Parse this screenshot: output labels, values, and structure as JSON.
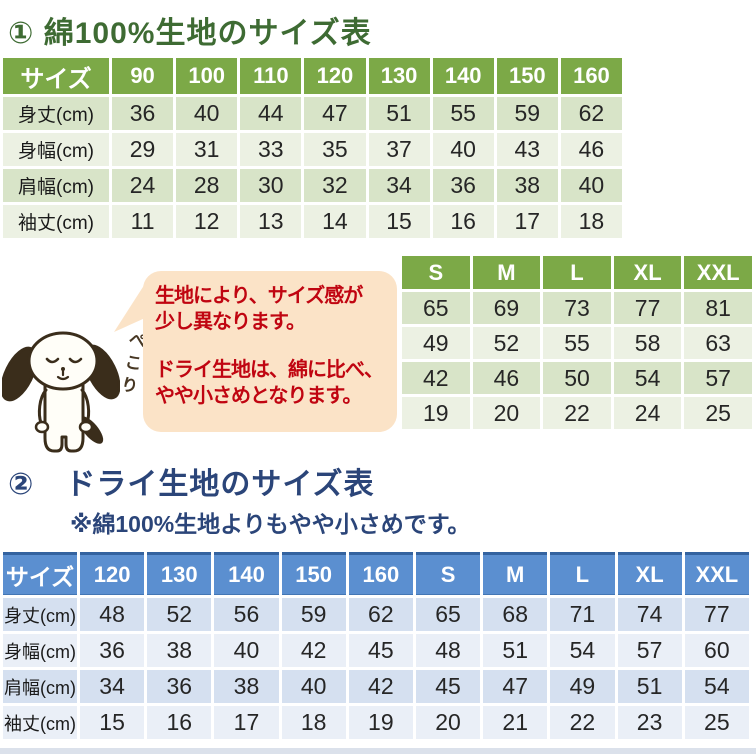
{
  "section1": {
    "title": "① 綿100%生地のサイズ表",
    "table": {
      "header": [
        "サイズ",
        "90",
        "100",
        "110",
        "120",
        "130",
        "140",
        "150",
        "160"
      ],
      "rows": [
        {
          "label": "身丈(cm)",
          "values": [
            36,
            40,
            44,
            47,
            51,
            55,
            59,
            62
          ]
        },
        {
          "label": "身幅(cm)",
          "values": [
            29,
            31,
            33,
            35,
            37,
            40,
            43,
            46
          ]
        },
        {
          "label": "肩幅(cm)",
          "values": [
            24,
            28,
            30,
            32,
            34,
            36,
            38,
            40
          ]
        },
        {
          "label": "袖丈(cm)",
          "values": [
            11,
            12,
            13,
            14,
            15,
            16,
            17,
            18
          ]
        }
      ]
    }
  },
  "adult_table": {
    "header": [
      "S",
      "M",
      "L",
      "XL",
      "XXL"
    ],
    "rows": [
      [
        65,
        69,
        73,
        77,
        81
      ],
      [
        49,
        52,
        55,
        58,
        63
      ],
      [
        42,
        46,
        50,
        54,
        57
      ],
      [
        19,
        20,
        22,
        24,
        25
      ]
    ]
  },
  "callout": {
    "bow_text": "ぺこり",
    "paragraph1": [
      "生地により、サイズ感が",
      "少し異なります。"
    ],
    "paragraph2": [
      "ドライ生地は、綿に比べ、",
      "やや小さめとなります。"
    ]
  },
  "section2": {
    "title": "②　ドライ生地のサイズ表",
    "subtitle": "※綿100%生地よりもやや小さめです。",
    "table": {
      "header": [
        "サイズ",
        "120",
        "130",
        "140",
        "150",
        "160",
        "S",
        "M",
        "L",
        "XL",
        "XXL"
      ],
      "rows": [
        {
          "label": "身丈(cm)",
          "values": [
            48,
            52,
            56,
            59,
            62,
            65,
            68,
            71,
            74,
            77
          ]
        },
        {
          "label": "身幅(cm)",
          "values": [
            36,
            38,
            40,
            42,
            45,
            48,
            51,
            54,
            57,
            60
          ]
        },
        {
          "label": "肩幅(cm)",
          "values": [
            34,
            36,
            38,
            40,
            42,
            45,
            47,
            49,
            51,
            54
          ]
        },
        {
          "label": "袖丈(cm)",
          "values": [
            15,
            16,
            17,
            18,
            19,
            20,
            21,
            22,
            23,
            25
          ]
        }
      ]
    }
  },
  "colors": {
    "green_header": "#7CA947",
    "green_row_dark": "#D8E4C8",
    "green_row_light": "#ECF1E3",
    "blue_header": "#5B8FD0",
    "blue_row_dark": "#D5E0F0",
    "blue_row_light": "#EAEFF7",
    "title1_green": "#3E6B33",
    "title2_navy": "#2B4579",
    "bubble_bg": "#FBE3C7",
    "bubble_text_red": "#C00511",
    "dog_outline": "#3A2D1B"
  }
}
